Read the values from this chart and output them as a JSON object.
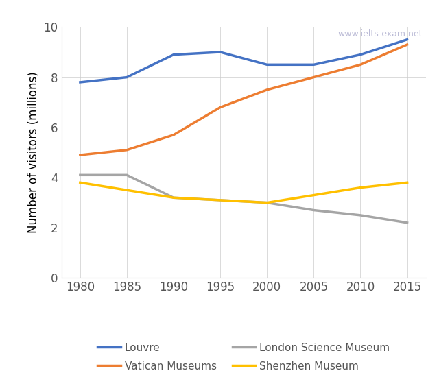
{
  "years": [
    1980,
    1985,
    1990,
    1995,
    2000,
    2005,
    2010,
    2015
  ],
  "louvre": [
    7.8,
    8.0,
    8.9,
    9.0,
    8.5,
    8.5,
    8.9,
    9.5
  ],
  "vatican": [
    4.9,
    5.1,
    5.7,
    6.8,
    7.5,
    8.0,
    8.5,
    9.3
  ],
  "london": [
    4.1,
    4.1,
    3.2,
    3.1,
    3.0,
    2.7,
    2.5,
    2.2
  ],
  "shenzhen": [
    3.8,
    3.5,
    3.2,
    3.1,
    3.0,
    3.3,
    3.6,
    3.8
  ],
  "louvre_color": "#4472C4",
  "vatican_color": "#ED7D31",
  "london_color": "#A5A5A5",
  "shenzhen_color": "#FFC000",
  "ylabel": "Number of visitors (millions)",
  "ylim": [
    0,
    10
  ],
  "yticks": [
    0,
    2,
    4,
    6,
    8,
    10
  ],
  "xlim": [
    1978,
    2017
  ],
  "xticks": [
    1980,
    1985,
    1990,
    1995,
    2000,
    2005,
    2010,
    2015
  ],
  "watermark": "www.ielts-exam.net",
  "legend_labels": [
    "Louvre",
    "Vatican Museums",
    "London Science Museum",
    "Shenzhen Museum"
  ],
  "linewidth": 2.5,
  "tick_fontsize": 12,
  "ylabel_fontsize": 12,
  "legend_fontsize": 11
}
